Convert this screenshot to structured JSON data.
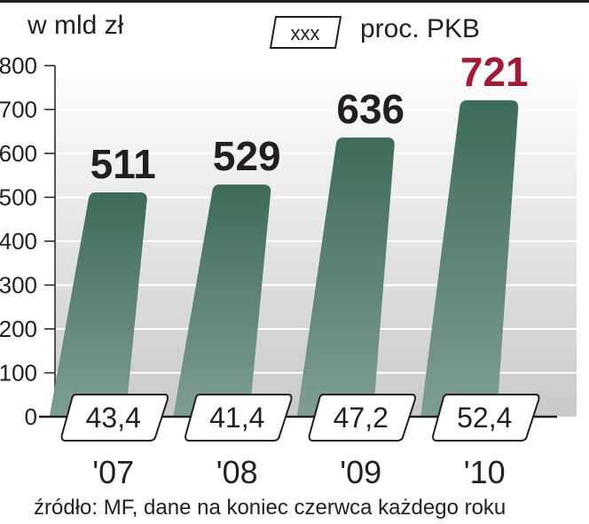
{
  "header": {
    "unit_label": "w mld zł",
    "legend_box_text": "xxx",
    "legend_label": "proc. PKB"
  },
  "source": "źródło: MF, dane na koniec czerwca każdego roku",
  "colors": {
    "bar_top": "#3e6b59",
    "bar_bottom": "#7f9e92",
    "bg_light": "#ffffff",
    "bg_dark": "#c9c9c9",
    "highlight": "#a01c34",
    "text": "#231f20"
  },
  "chart_data": {
    "type": "bar",
    "categories": [
      "'07",
      "'08",
      "'09",
      "'10"
    ],
    "values": [
      511,
      529,
      636,
      721
    ],
    "value_labels": [
      "511",
      "529",
      "636",
      "721"
    ],
    "highlight_index": 3,
    "gdp_percent": [
      "43,4",
      "41,4",
      "47,2",
      "52,4"
    ],
    "y_ticks": [
      "800",
      "700",
      "600",
      "500",
      "400",
      "300",
      "200",
      "100",
      "0"
    ],
    "ylim": [
      0,
      800
    ],
    "ylabel": "w mld zł",
    "title": "",
    "xlabel": ""
  }
}
